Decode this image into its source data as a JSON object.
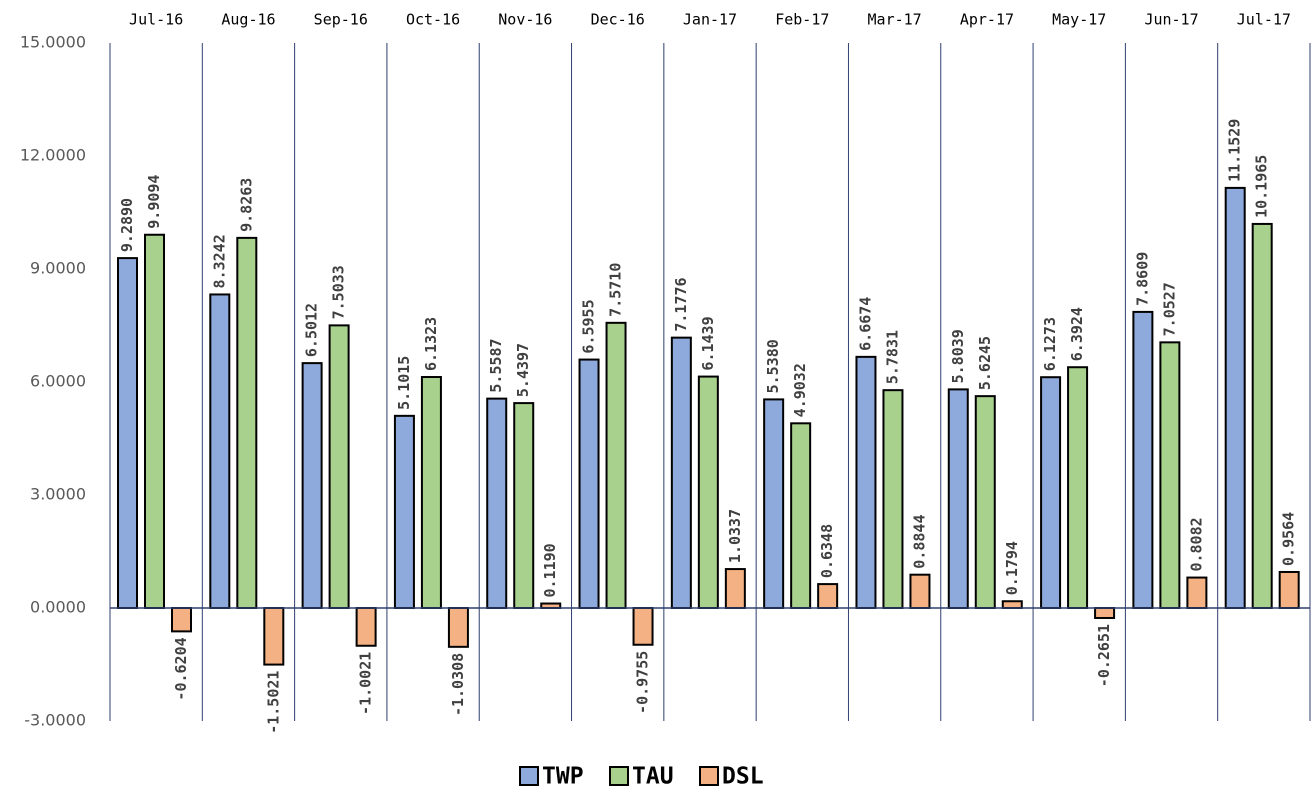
{
  "chart_data": {
    "type": "bar",
    "categories": [
      "Jul-16",
      "Aug-16",
      "Sep-16",
      "Oct-16",
      "Nov-16",
      "Dec-16",
      "Jan-17",
      "Feb-17",
      "Mar-17",
      "Apr-17",
      "May-17",
      "Jun-17",
      "Jul-17"
    ],
    "series": [
      {
        "name": "TWP",
        "color": "#8EA9DB",
        "values": [
          9.289,
          8.3242,
          6.5012,
          5.1015,
          5.5587,
          6.5955,
          7.1776,
          5.538,
          6.6674,
          5.8039,
          6.1273,
          7.8609,
          11.1529
        ],
        "value_labels": [
          "9.2890",
          "8.3242",
          "6.5012",
          "5.1015",
          "5.5587",
          "6.5955",
          "7.1776",
          "5.5380",
          "6.6674",
          "5.8039",
          "6.1273",
          "7.8609",
          "11.1529"
        ]
      },
      {
        "name": "TAU",
        "color": "#A9D18E",
        "values": [
          9.9094,
          9.8263,
          7.5033,
          6.1323,
          5.4397,
          7.571,
          6.1439,
          4.9032,
          5.7831,
          5.6245,
          6.3924,
          7.0527,
          10.1965
        ],
        "value_labels": [
          "9.9094",
          "9.8263",
          "7.5033",
          "6.1323",
          "5.4397",
          "7.5710",
          "6.1439",
          "4.9032",
          "5.7831",
          "5.6245",
          "6.3924",
          "7.0527",
          "10.1965"
        ]
      },
      {
        "name": "DSL",
        "color": "#F4B183",
        "values": [
          -0.6204,
          -1.5021,
          -1.0021,
          -1.0308,
          0.119,
          -0.9755,
          1.0337,
          0.6348,
          0.8844,
          0.1794,
          -0.2651,
          0.8082,
          0.9564
        ],
        "value_labels": [
          "-0.6204",
          "-1.5021",
          "-1.0021",
          "-1.0308",
          "0.1190",
          "-0.9755",
          "1.0337",
          "0.6348",
          "0.8844",
          "0.1794",
          "-0.2651",
          "0.8082",
          "0.9564"
        ]
      }
    ],
    "ylim": [
      -3,
      15
    ],
    "yticks": [
      {
        "value": -3,
        "label": "-3.0000"
      },
      {
        "value": 0,
        "label": "0.0000"
      },
      {
        "value": 3,
        "label": "3.0000"
      },
      {
        "value": 6,
        "label": "6.0000"
      },
      {
        "value": 9,
        "label": "9.0000"
      },
      {
        "value": 12,
        "label": "12.0000"
      },
      {
        "value": 15,
        "label": "15.0000"
      }
    ],
    "legend": "bottom"
  }
}
